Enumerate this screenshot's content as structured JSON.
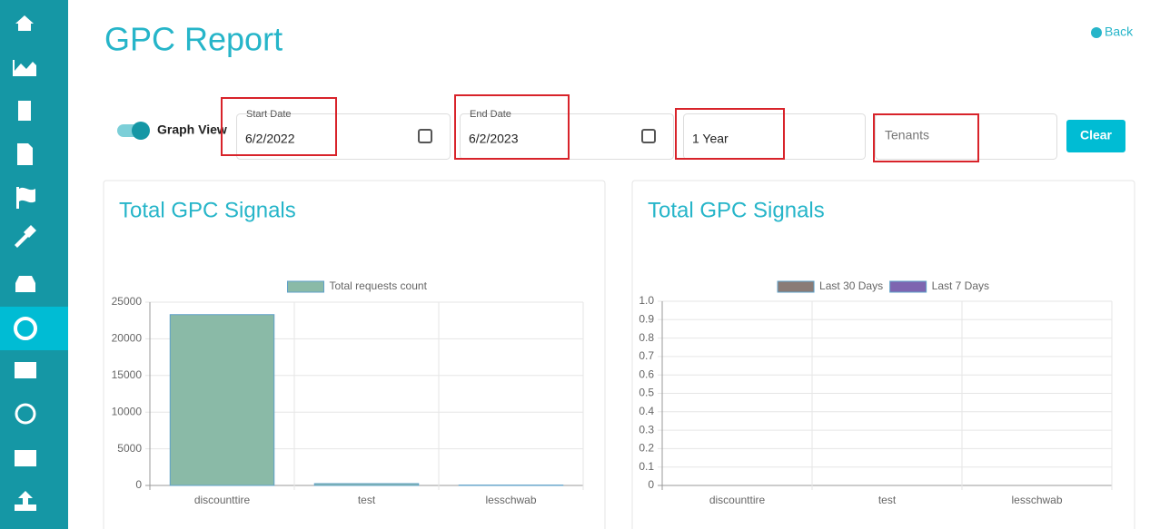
{
  "header": {
    "title": "GPC Report",
    "back": "Back"
  },
  "filters": {
    "toggle_label": "Graph View",
    "start_date": {
      "label": "Start Date",
      "value": "6/2/2022"
    },
    "end_date": {
      "label": "End Date",
      "value": "6/2/2023"
    },
    "period": "1 Year",
    "tenants": "Tenants",
    "clear": "Clear"
  },
  "chart_data": [
    {
      "type": "bar",
      "title": "Total GPC Signals",
      "categories": [
        "discounttire",
        "test",
        "lesschwab"
      ],
      "series": [
        {
          "name": "Total requests count",
          "color": "#8abaa7",
          "values": [
            23300,
            250,
            50
          ]
        }
      ],
      "ylim": [
        0,
        25000
      ],
      "yticks": [
        0,
        5000,
        10000,
        15000,
        20000,
        25000
      ],
      "grid": true
    },
    {
      "type": "bar",
      "title": "Total GPC Signals",
      "categories": [
        "discounttire",
        "test",
        "lesschwab"
      ],
      "series": [
        {
          "name": "Last 30 Days",
          "color": "#8a7b76",
          "values": [
            0,
            0,
            0
          ]
        },
        {
          "name": "Last 7 Days",
          "color": "#7e65b0",
          "values": [
            0,
            0,
            0
          ]
        }
      ],
      "ylim": [
        0,
        1
      ],
      "yticks": [
        0,
        0.1,
        0.2,
        0.3,
        0.4,
        0.5,
        0.6,
        0.7,
        0.8,
        0.9,
        {
          "value": 1,
          "label": "1.0"
        }
      ],
      "grid": true
    }
  ]
}
